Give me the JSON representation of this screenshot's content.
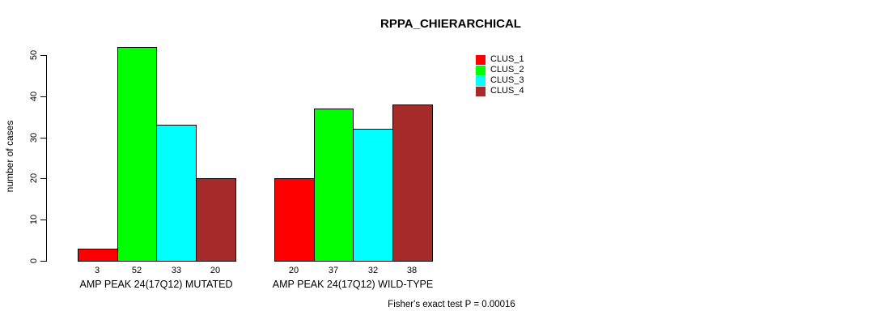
{
  "chart_data": {
    "type": "bar",
    "title": "RPPA_CHIERARCHICAL",
    "ylabel": "number of cases",
    "ylim": [
      0,
      50
    ],
    "yticks": [
      0,
      10,
      20,
      30,
      40,
      50
    ],
    "grid": false,
    "legend_position": "top-right",
    "legend": [
      {
        "label": "CLUS_1",
        "color": "#ff0000"
      },
      {
        "label": "CLUS_2",
        "color": "#00ff00"
      },
      {
        "label": "CLUS_3",
        "color": "#00ffff"
      },
      {
        "label": "CLUS_4",
        "color": "#a52a2a"
      }
    ],
    "groups": [
      {
        "label": "AMP PEAK 24(17Q12) MUTATED",
        "values": [
          3,
          52,
          33,
          20
        ]
      },
      {
        "label": "AMP PEAK 24(17Q12) WILD-TYPE",
        "values": [
          20,
          37,
          32,
          38
        ]
      }
    ],
    "annotation": "Fisher's exact test P = 0.00016"
  }
}
